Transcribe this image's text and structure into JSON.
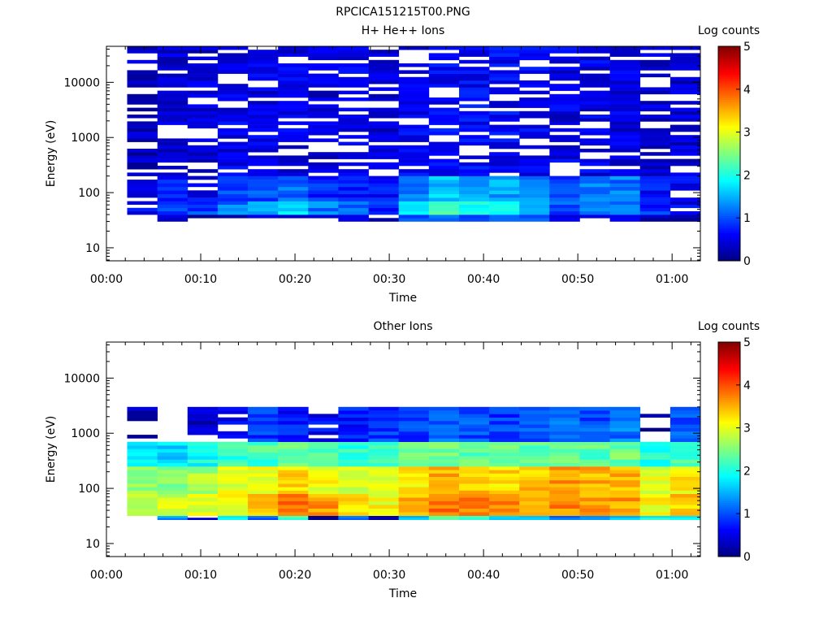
{
  "figure_title": "RPCICA151215T00.PNG",
  "chart_data": [
    {
      "type": "heatmap",
      "title": "H+ He++ Ions",
      "xlabel": "Time",
      "ylabel": "Energy (eV)",
      "x_ticks": [
        "00:00",
        "00:10",
        "00:20",
        "00:30",
        "00:40",
        "00:50",
        "01:00"
      ],
      "xlim_minutes": [
        0,
        63
      ],
      "time_bins_minutes": [
        2.2,
        5.4,
        8.6,
        11.8,
        15.0,
        18.2,
        21.4,
        24.6,
        27.8,
        31.0,
        34.2,
        37.4,
        40.6,
        43.8,
        47.0,
        50.2,
        53.4,
        56.6,
        59.8,
        63.0
      ],
      "y_scale": "log",
      "y_ticks": [
        "10",
        "100",
        "1000",
        "10000"
      ],
      "ylim_eV": [
        5.8,
        45000
      ],
      "colorbar": {
        "label": "Log counts",
        "range": [
          0,
          5
        ],
        "ticks": [
          "0",
          "1",
          "2",
          "3",
          "4",
          "5"
        ]
      },
      "energy_bands": [
        {
          "range_eV": [
            30,
            40
          ],
          "log_counts": [
            0.2,
            0.3,
            0.2,
            0.4,
            0.5,
            0.6,
            0.4,
            0.5,
            0.3,
            0.9,
            1.1,
            1.0,
            1.2,
            0.9,
            0.5,
            0.4,
            0.6,
            0.3,
            0.2
          ]
        },
        {
          "range_eV": [
            40,
            70
          ],
          "log_counts": [
            0.6,
            1.0,
            0.9,
            1.2,
            1.4,
            1.8,
            1.2,
            1.1,
            0.8,
            1.7,
            2.1,
            1.9,
            2.0,
            1.6,
            1.0,
            1.3,
            1.3,
            0.8,
            0.6
          ]
        },
        {
          "range_eV": [
            70,
            200
          ],
          "log_counts": [
            0.5,
            0.7,
            0.6,
            0.9,
            1.0,
            1.1,
            0.8,
            0.7,
            0.7,
            1.2,
            1.6,
            1.5,
            1.4,
            1.3,
            0.9,
            1.2,
            1.2,
            0.7,
            0.6
          ]
        },
        {
          "range_eV": [
            200,
            45000
          ],
          "log_counts": [
            0.3,
            0.4,
            0.4,
            0.5,
            0.5,
            0.5,
            0.4,
            0.5,
            0.4,
            0.6,
            0.6,
            0.6,
            0.6,
            0.6,
            0.5,
            0.5,
            0.5,
            0.4,
            0.4
          ]
        }
      ]
    },
    {
      "type": "heatmap",
      "title": "Other Ions",
      "xlabel": "Time",
      "ylabel": "Energy (eV)",
      "x_ticks": [
        "00:00",
        "00:10",
        "00:20",
        "00:30",
        "00:40",
        "00:50",
        "01:00"
      ],
      "xlim_minutes": [
        0,
        63
      ],
      "time_bins_minutes": [
        2.2,
        5.4,
        8.6,
        11.8,
        15.0,
        18.2,
        21.4,
        24.6,
        27.8,
        31.0,
        34.2,
        37.4,
        40.6,
        43.8,
        47.0,
        50.2,
        53.4,
        56.6,
        59.8,
        63.0
      ],
      "y_scale": "log",
      "y_ticks": [
        "10",
        "100",
        "1000",
        "10000"
      ],
      "ylim_eV": [
        5.8,
        45000
      ],
      "colorbar": {
        "label": "Log counts",
        "range": [
          0,
          5
        ],
        "ticks": [
          "0",
          "1",
          "2",
          "3",
          "4",
          "5"
        ]
      },
      "energy_bands": [
        {
          "range_eV": [
            27,
            32
          ],
          "log_counts": [
            0.1,
            1.4,
            0.2,
            1.8,
            1.2,
            2.2,
            0.1,
            1.2,
            0.3,
            1.6,
            2.3,
            2.0,
            1.6,
            1.8,
            1.2,
            1.5,
            1.7,
            1.9,
            1.8
          ]
        },
        {
          "range_eV": [
            32,
            80
          ],
          "log_counts": [
            2.9,
            2.9,
            3.0,
            3.1,
            3.3,
            3.8,
            3.6,
            3.3,
            3.1,
            3.5,
            3.8,
            3.7,
            3.7,
            3.6,
            3.7,
            3.6,
            3.6,
            3.1,
            3.4
          ]
        },
        {
          "range_eV": [
            80,
            250
          ],
          "log_counts": [
            2.6,
            2.5,
            2.7,
            3.0,
            3.0,
            3.3,
            3.1,
            2.9,
            2.9,
            3.2,
            3.5,
            3.4,
            3.3,
            3.4,
            3.6,
            3.5,
            3.5,
            3.0,
            3.2
          ]
        },
        {
          "range_eV": [
            250,
            700
          ],
          "log_counts": [
            1.8,
            1.7,
            1.9,
            2.1,
            2.2,
            2.4,
            2.2,
            2.1,
            2.1,
            2.3,
            2.4,
            2.3,
            2.3,
            2.3,
            2.4,
            2.3,
            2.4,
            2.0,
            2.2
          ]
        },
        {
          "range_eV": [
            700,
            3000
          ],
          "log_counts": [
            0.3,
            0.0,
            0.3,
            0.6,
            0.9,
            0.7,
            0.6,
            0.7,
            0.9,
            0.9,
            1.1,
            1.0,
            0.9,
            1.0,
            1.1,
            1.0,
            1.2,
            0.0,
            1.0
          ]
        }
      ]
    }
  ]
}
